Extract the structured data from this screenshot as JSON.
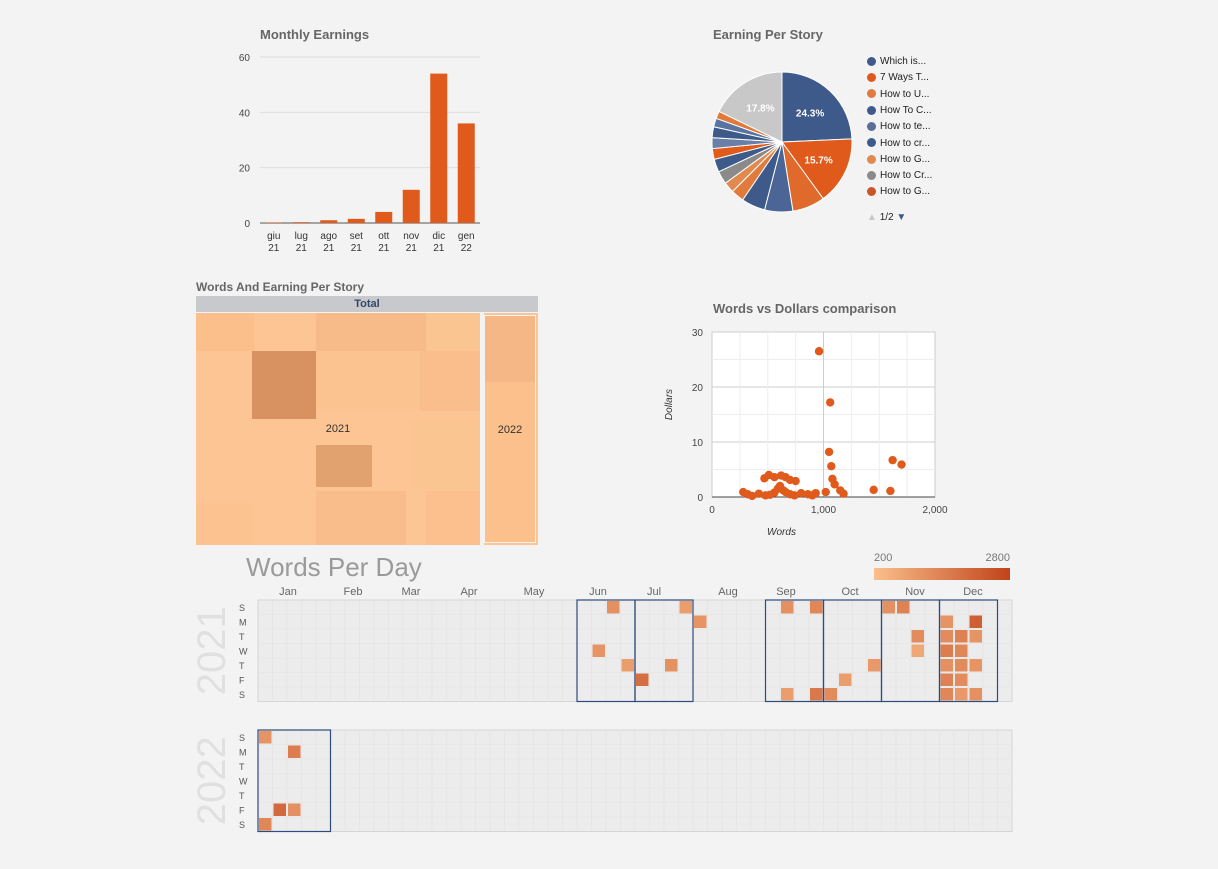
{
  "monthly_earnings": {
    "title": "Monthly Earnings"
  },
  "earning_per_story": {
    "title": "Earning Per Story",
    "legend": [
      "Which is...",
      "7 Ways T...",
      "How to U...",
      "How To C...",
      "How to te...",
      "How to cr...",
      "How to G...",
      "How to Cr...",
      "How to G..."
    ],
    "pager": "1/2"
  },
  "words_earning": {
    "title": "Words And Earning Per Story",
    "header": "Total",
    "label_2021": "2021",
    "label_2022": "2022"
  },
  "scatter": {
    "title": "Words vs Dollars comparison"
  },
  "calendar": {
    "title": "Words Per Day",
    "legend_min": "200",
    "legend_max": "2800",
    "months": [
      "Jan",
      "Feb",
      "Mar",
      "Apr",
      "May",
      "Jun",
      "Jul",
      "Aug",
      "Sep",
      "Oct",
      "Nov",
      "Dec"
    ],
    "day_labels": [
      "S",
      "M",
      "T",
      "W",
      "T",
      "F",
      "S"
    ],
    "years": [
      "2021",
      "2022"
    ]
  },
  "colors": {
    "orange": "#e05a1b",
    "blue": "#3d5a8a",
    "grey": "#c8c8c8"
  },
  "chart_data": [
    {
      "type": "bar",
      "title": "Monthly Earnings",
      "categories": [
        [
          "giu",
          "21"
        ],
        [
          "lug",
          "21"
        ],
        [
          "ago",
          "21"
        ],
        [
          "set",
          "21"
        ],
        [
          "ott",
          "21"
        ],
        [
          "nov",
          "21"
        ],
        [
          "dic",
          "21"
        ],
        [
          "gen",
          "22"
        ]
      ],
      "values": [
        0.2,
        0.3,
        1,
        1.5,
        4,
        12,
        54,
        36
      ],
      "ylim": [
        0,
        60
      ],
      "yticks": [
        0,
        20,
        40,
        60
      ],
      "grid": true
    },
    {
      "type": "pie",
      "title": "Earning Per Story",
      "slices": [
        {
          "value": 24.3,
          "color": "#3d5a8a",
          "label": "24.3%"
        },
        {
          "value": 15.7,
          "color": "#e05a1b",
          "label": "15.7%"
        },
        {
          "value": 7.5,
          "color": "#e06a2c"
        },
        {
          "value": 6.5,
          "color": "#4a6596"
        },
        {
          "value": 5.5,
          "color": "#3d5a8a"
        },
        {
          "value": 3,
          "color": "#e07b3d"
        },
        {
          "value": 2.5,
          "color": "#e08a50"
        },
        {
          "value": 3,
          "color": "#8a8a8a"
        },
        {
          "value": 3,
          "color": "#3d5a8a"
        },
        {
          "value": 2.5,
          "color": "#e05a1b"
        },
        {
          "value": 2.5,
          "color": "#6a7fa8"
        },
        {
          "value": 2.5,
          "color": "#3d5a8a"
        },
        {
          "value": 2,
          "color": "#5a73a0"
        },
        {
          "value": 1.7,
          "color": "#e07b3d"
        },
        {
          "value": 17.8,
          "color": "#c8c8c8",
          "label": "17.8%"
        }
      ],
      "legend_position": "right"
    },
    {
      "type": "scatter",
      "title": "Words vs Dollars comparison",
      "xlabel": "Words",
      "ylabel": "Dollars",
      "xlim": [
        0,
        2000
      ],
      "ylim": [
        0,
        30
      ],
      "xticks": [
        0,
        1000,
        2000
      ],
      "xtick_labels": [
        "0",
        "1,000",
        "2,000"
      ],
      "yticks": [
        0,
        10,
        20,
        30
      ],
      "points": [
        [
          960,
          26.5
        ],
        [
          1060,
          17.2
        ],
        [
          1050,
          8.2
        ],
        [
          1070,
          5.6
        ],
        [
          1080,
          3.3
        ],
        [
          1100,
          2.3
        ],
        [
          1150,
          1.2
        ],
        [
          1180,
          0.6
        ],
        [
          1020,
          0.9
        ],
        [
          930,
          0.7
        ],
        [
          1620,
          6.7
        ],
        [
          1700,
          5.9
        ],
        [
          1600,
          1.1
        ],
        [
          1450,
          1.3
        ],
        [
          280,
          0.9
        ],
        [
          320,
          0.5
        ],
        [
          360,
          0.2
        ],
        [
          420,
          0.6
        ],
        [
          480,
          0.3
        ],
        [
          520,
          0.4
        ],
        [
          560,
          0.8
        ],
        [
          590,
          1.5
        ],
        [
          610,
          2.0
        ],
        [
          640,
          1.2
        ],
        [
          660,
          0.9
        ],
        [
          700,
          0.5
        ],
        [
          740,
          0.3
        ],
        [
          800,
          0.7
        ],
        [
          860,
          0.5
        ],
        [
          900,
          0.3
        ],
        [
          470,
          3.4
        ],
        [
          510,
          4.0
        ],
        [
          560,
          3.6
        ],
        [
          620,
          3.9
        ],
        [
          660,
          3.6
        ],
        [
          700,
          3.1
        ],
        [
          750,
          2.9
        ]
      ]
    },
    {
      "type": "heatmap",
      "title": "Words Per Day",
      "color_range": [
        200,
        2800
      ],
      "year_2021": [
        {
          "w": 24,
          "d": 0,
          "v": 1200
        },
        {
          "w": 25,
          "d": 4,
          "v": 900
        },
        {
          "w": 23,
          "d": 3,
          "v": 1100
        },
        {
          "w": 26,
          "d": 5,
          "v": 1900
        },
        {
          "w": 29,
          "d": 0,
          "v": 900
        },
        {
          "w": 30,
          "d": 1,
          "v": 1100
        },
        {
          "w": 28,
          "d": 4,
          "v": 1200
        },
        {
          "w": 36,
          "d": 0,
          "v": 1200
        },
        {
          "w": 38,
          "d": 0,
          "v": 1400
        },
        {
          "w": 36,
          "d": 6,
          "v": 900
        },
        {
          "w": 38,
          "d": 6,
          "v": 1700
        },
        {
          "w": 39,
          "d": 6,
          "v": 1300
        },
        {
          "w": 40,
          "d": 5,
          "v": 900
        },
        {
          "w": 42,
          "d": 4,
          "v": 1000
        },
        {
          "w": 43,
          "d": 0,
          "v": 1200
        },
        {
          "w": 44,
          "d": 0,
          "v": 1500
        },
        {
          "w": 45,
          "d": 2,
          "v": 1300
        },
        {
          "w": 45,
          "d": 3,
          "v": 700
        },
        {
          "w": 47,
          "d": 1,
          "v": 1100
        },
        {
          "w": 49,
          "d": 1,
          "v": 2200
        },
        {
          "w": 47,
          "d": 2,
          "v": 1300
        },
        {
          "w": 48,
          "d": 2,
          "v": 1500
        },
        {
          "w": 49,
          "d": 2,
          "v": 1100
        },
        {
          "w": 48,
          "d": 3,
          "v": 1400
        },
        {
          "w": 47,
          "d": 4,
          "v": 1200
        },
        {
          "w": 49,
          "d": 4,
          "v": 1100
        },
        {
          "w": 48,
          "d": 5,
          "v": 1300
        },
        {
          "w": 47,
          "d": 5,
          "v": 1500
        },
        {
          "w": 47,
          "d": 6,
          "v": 1400
        },
        {
          "w": 49,
          "d": 6,
          "v": 1200
        },
        {
          "w": 48,
          "d": 6,
          "v": 1000
        },
        {
          "w": 47,
          "d": 3,
          "v": 1600
        },
        {
          "w": 48,
          "d": 4,
          "v": 1300
        }
      ],
      "year_2022": [
        {
          "w": 0,
          "d": 0,
          "v": 1100
        },
        {
          "w": 2,
          "d": 1,
          "v": 1600
        },
        {
          "w": 1,
          "d": 5,
          "v": 2000
        },
        {
          "w": 2,
          "d": 5,
          "v": 1200
        },
        {
          "w": 0,
          "d": 6,
          "v": 1400
        }
      ]
    }
  ]
}
